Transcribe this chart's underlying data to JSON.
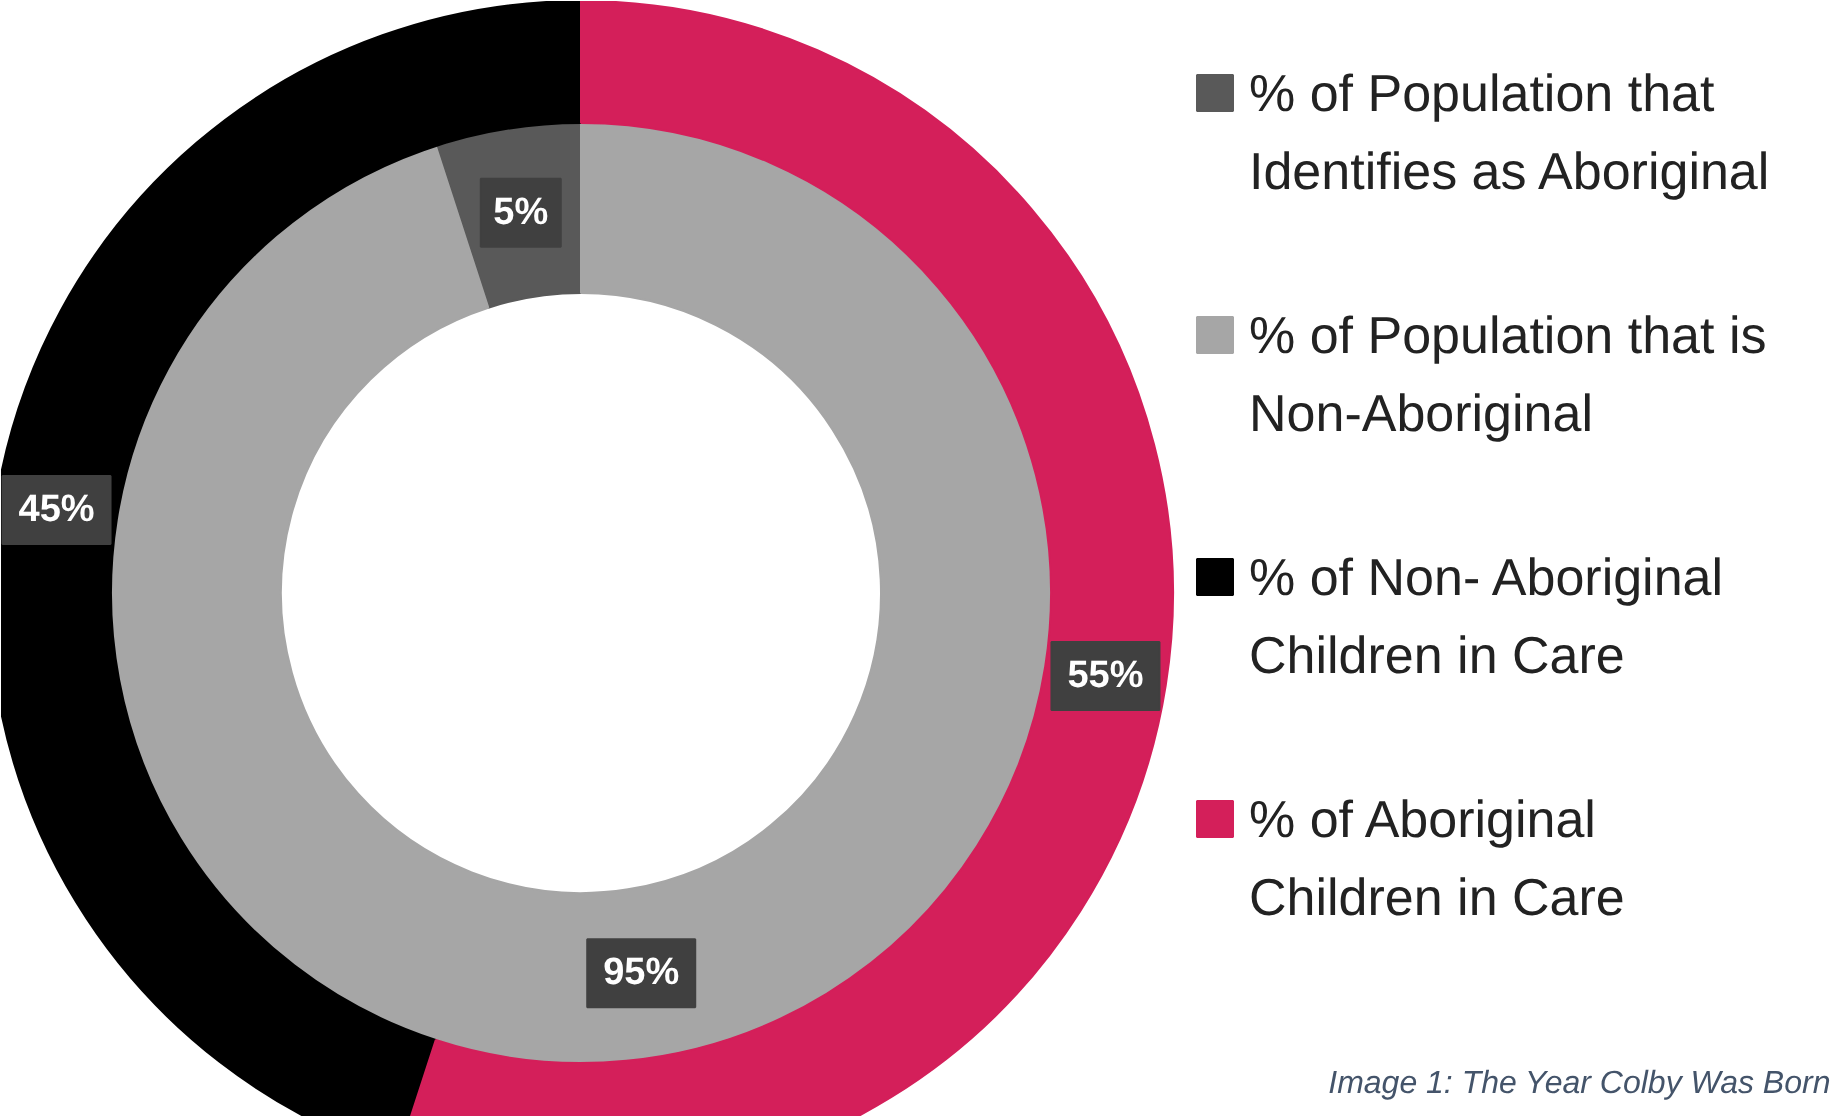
{
  "chart_data": {
    "type": "donut",
    "categories": [
      "% of Population that Identifies as Aboriginal",
      "% of Population that is Non-Aboriginal",
      "% of Non- Aboriginal Children in Care",
      "% of Aboriginal Children in Care"
    ],
    "colors": [
      "#595959",
      "#a6a6a6",
      "#000000",
      "#d41f5a"
    ],
    "series": [
      {
        "values": [
          5,
          95,
          null,
          null
        ],
        "value_labels": [
          "5%",
          "95%",
          null,
          null
        ]
      },
      {
        "values": [
          null,
          null,
          45,
          55
        ],
        "value_labels": [
          null,
          null,
          "45%",
          "55%"
        ]
      }
    ],
    "legend": "right",
    "annotations": [
      "Image 1: The Year Colby Was Born"
    ]
  }
}
